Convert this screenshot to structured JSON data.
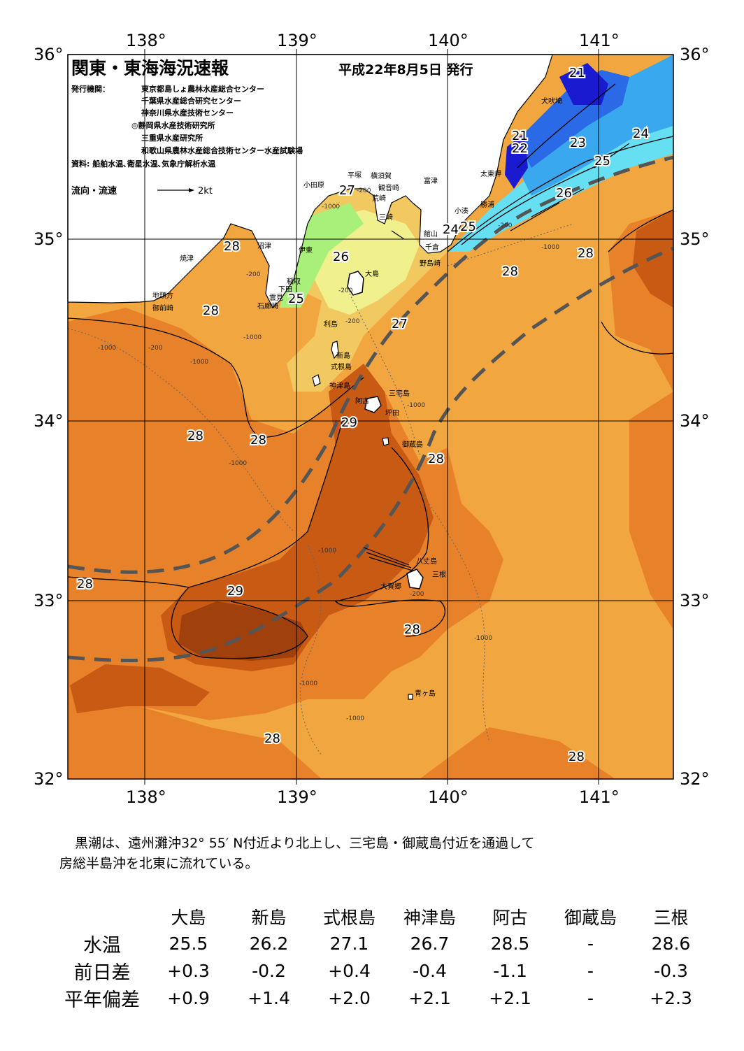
{
  "title": "関東・東海海況速報",
  "issue_date": "平成22年8月5日 発行",
  "publisher": {
    "label": "発行機関：",
    "orgs": [
      "東京都島しょ農林水産総合センター",
      "千葉県水産総合研究センター",
      "神奈川県水産技術センター",
      "◎静岡県水産技術研究所",
      "三重県水産研究所",
      "和歌山県農林水産総合技術センター水産試験場"
    ]
  },
  "source": "資料: 船舶水温､衛星水温､気象庁解析水温",
  "flow_legend": {
    "label": "流向・流速",
    "speed": "2kt"
  },
  "axes": {
    "lon_labels": [
      "138°",
      "139°",
      "140°",
      "141°"
    ],
    "lat_labels": [
      "36°",
      "35°",
      "34°",
      "33°",
      "32°"
    ],
    "lon_range": [
      137.5,
      141.5
    ],
    "lat_range": [
      32,
      36
    ]
  },
  "isotherm_labels": [
    "21",
    "21",
    "22",
    "23",
    "24",
    "25",
    "26",
    "24",
    "25",
    "27",
    "28",
    "28",
    "28",
    "26",
    "25",
    "27",
    "28",
    "28",
    "28",
    "29",
    "28",
    "28",
    "29",
    "28",
    "28",
    "28"
  ],
  "place_names": [
    "小田原",
    "平塚",
    "横須賀",
    "観音崎",
    "富津",
    "荒崎",
    "三崎",
    "館山",
    "千倉",
    "野島崎",
    "小湊",
    "勝浦",
    "太東岬",
    "犬吠埼",
    "焼津",
    "沼津",
    "伊東",
    "稲取",
    "下田",
    "雲見",
    "石廊崎",
    "地頭方",
    "御前崎",
    "大島",
    "利島",
    "新島",
    "式根島",
    "神津島",
    "三宅島",
    "阿古",
    "坪田",
    "御蔵島",
    "八丈島",
    "三根",
    "大賀郷",
    "青ヶ島"
  ],
  "depth_labels": [
    "-200",
    "-1000"
  ],
  "colors": {
    "t21": "#1a1ad0",
    "t22": "#2a6ae6",
    "t23": "#3aa8ef",
    "t24": "#66dff2",
    "t25": "#a8f07a",
    "t26": "#f0f08c",
    "t27": "#f2c860",
    "t28": "#f2a640",
    "t28b": "#e8822a",
    "t29": "#c85a14",
    "t29b": "#a0400c",
    "kuroshio_axis": "#555555"
  },
  "summary": [
    "黒潮は、遠州灘沖32° 55′ N付近より北上し、三宅島・御蔵島付近を通過して",
    "房総半島沖を北東に流れている。"
  ],
  "table": {
    "columns": [
      "大島",
      "新島",
      "式根島",
      "神津島",
      "阿古",
      "御蔵島",
      "三根"
    ],
    "rows": [
      {
        "label": "水温",
        "values": [
          "25.5",
          "26.2",
          "27.1",
          "26.7",
          "28.5",
          "-",
          "28.6"
        ]
      },
      {
        "label": "前日差",
        "values": [
          "+0.3",
          "-0.2",
          "+0.4",
          "-0.4",
          "-1.1",
          "-",
          "-0.3"
        ]
      },
      {
        "label": "平年偏差",
        "values": [
          "+0.9",
          "+1.4",
          "+2.0",
          "+2.1",
          "+2.1",
          "-",
          "+2.3"
        ]
      }
    ]
  }
}
